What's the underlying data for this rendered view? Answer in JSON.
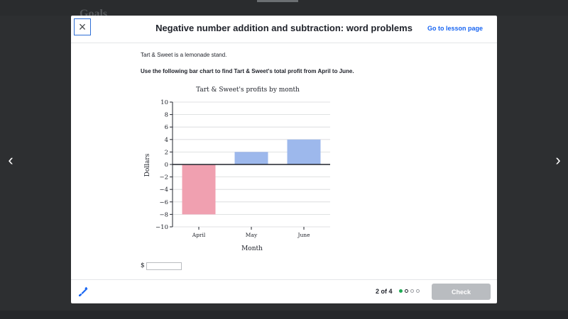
{
  "background": {
    "ghost_title": "Goals"
  },
  "header": {
    "title": "Negative number addition and subtraction: word problems",
    "lesson_link": "Go to lesson page",
    "close_icon": "×"
  },
  "question": {
    "intro": "Tart & Sweet is a lemonade stand.",
    "prompt": "Use the following bar chart to find Tart & Sweet's total profit from April to June."
  },
  "chart_data": {
    "type": "bar",
    "title": "Tart & Sweet's profits by month",
    "xlabel": "Month",
    "ylabel": "Dollars",
    "categories": [
      "April",
      "May",
      "June"
    ],
    "values": [
      -8,
      2,
      4
    ],
    "colors": [
      "#f0a0b0",
      "#9db8ec",
      "#9db8ec"
    ],
    "ylim": [
      -10,
      10
    ],
    "yticks": [
      10,
      8,
      6,
      4,
      2,
      0,
      -2,
      -4,
      -6,
      -8,
      -10
    ],
    "ytick_labels": [
      "10",
      "8",
      "6",
      "4",
      "2",
      "0",
      "−2",
      "−4",
      "−6",
      "−8",
      "−10"
    ],
    "grid": true
  },
  "answer": {
    "currency_symbol": "$",
    "value": ""
  },
  "footer": {
    "progress": "2 of 4",
    "check_label": "Check",
    "dots": [
      "done",
      "current",
      "pending",
      "pending"
    ]
  },
  "nav": {
    "prev_icon": "‹",
    "next_icon": "›"
  }
}
